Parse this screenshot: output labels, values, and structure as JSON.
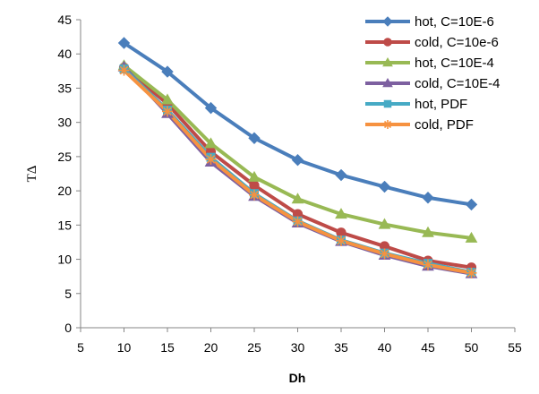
{
  "chart_data": {
    "type": "line",
    "title": "",
    "xlabel": "Dh",
    "ylabel": "TΔ",
    "xlim": [
      5,
      55
    ],
    "ylim": [
      0,
      45
    ],
    "x_ticks": [
      5,
      10,
      15,
      20,
      25,
      30,
      35,
      40,
      45,
      50,
      55
    ],
    "y_ticks": [
      0,
      5,
      10,
      15,
      20,
      25,
      30,
      35,
      40,
      45
    ],
    "grid": false,
    "legend_position": "top-right",
    "x": [
      10,
      15,
      20,
      25,
      30,
      35,
      40,
      45,
      50
    ],
    "series": [
      {
        "name": "hot, C=10E-6",
        "color": "#4a7ebb",
        "marker": "diamond",
        "values": [
          41.6,
          37.4,
          32.1,
          27.7,
          24.5,
          22.3,
          20.6,
          19.0,
          18.0
        ]
      },
      {
        "name": "cold, C=10e-6",
        "color": "#be4b48",
        "marker": "circle",
        "values": [
          38.0,
          32.7,
          25.7,
          20.8,
          16.6,
          13.9,
          11.9,
          9.8,
          8.8
        ]
      },
      {
        "name": "hot, C=10E-4",
        "color": "#98b954",
        "marker": "triangle",
        "values": [
          38.3,
          33.3,
          26.9,
          22.0,
          18.8,
          16.6,
          15.1,
          13.9,
          13.1
        ]
      },
      {
        "name": "cold, C=10E-4",
        "color": "#7d60a0",
        "marker": "triangle",
        "values": [
          38.1,
          31.3,
          24.2,
          19.2,
          15.3,
          12.6,
          10.6,
          9.0,
          7.9
        ]
      },
      {
        "name": "hot, PDF",
        "color": "#46aac5",
        "marker": "square",
        "values": [
          37.8,
          31.8,
          24.9,
          19.6,
          15.6,
          12.8,
          10.9,
          9.4,
          8.1
        ]
      },
      {
        "name": "cold, PDF",
        "color": "#f69240",
        "marker": "star",
        "values": [
          37.6,
          31.6,
          24.6,
          19.4,
          15.5,
          12.7,
          10.8,
          9.2,
          8.0
        ]
      }
    ]
  }
}
